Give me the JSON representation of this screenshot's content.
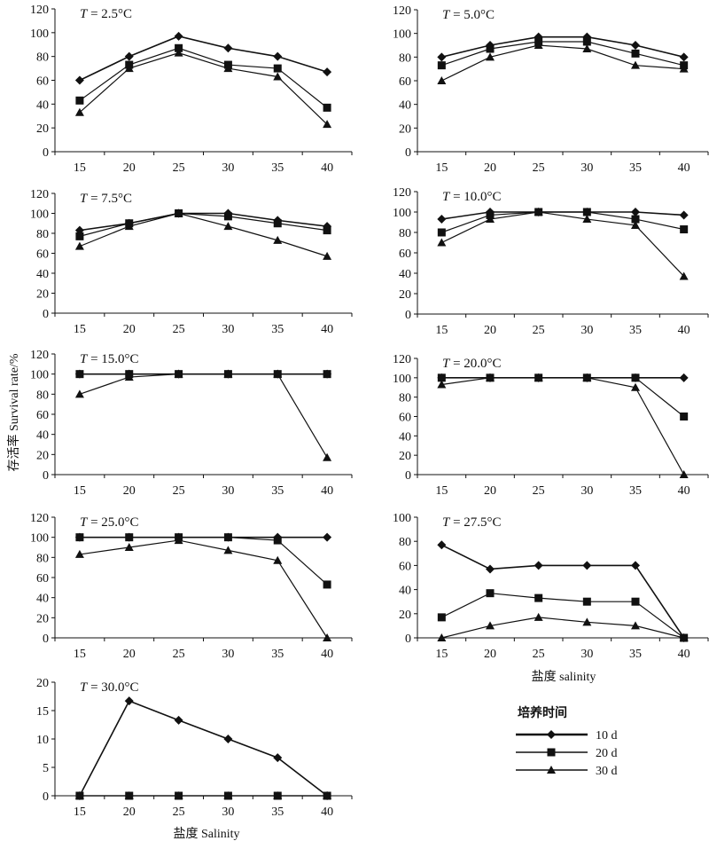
{
  "figure": {
    "y_axis_label": "存活率 Survival rate/%",
    "x_axis_labels": [
      "盐度 salinity",
      "盐度 Salinity"
    ],
    "legend_title": "培养时间"
  },
  "chart_data": [
    {
      "type": "line",
      "title": "T = 2.5°C",
      "title_var": "T",
      "title_rest": " = 2.5°C",
      "x": [
        15,
        20,
        25,
        30,
        35,
        40
      ],
      "ylim": [
        0,
        120
      ],
      "yticks": [
        0,
        20,
        40,
        60,
        80,
        100,
        120
      ],
      "series": [
        {
          "name": "10 d",
          "marker": "diamond",
          "values": [
            60,
            80,
            97,
            87,
            80,
            67
          ]
        },
        {
          "name": "20 d",
          "marker": "square",
          "values": [
            43,
            73,
            87,
            73,
            70,
            37
          ]
        },
        {
          "name": "30 d",
          "marker": "triangle",
          "values": [
            33,
            70,
            83,
            70,
            63,
            23
          ]
        }
      ]
    },
    {
      "type": "line",
      "title": "T = 5.0°C",
      "title_var": "T",
      "title_rest": " = 5.0°C",
      "x": [
        15,
        20,
        25,
        30,
        35,
        40
      ],
      "ylim": [
        0,
        120
      ],
      "yticks": [
        0,
        20,
        40,
        60,
        80,
        100,
        120
      ],
      "series": [
        {
          "name": "10 d",
          "marker": "diamond",
          "values": [
            80,
            90,
            97,
            97,
            90,
            80
          ]
        },
        {
          "name": "20 d",
          "marker": "square",
          "values": [
            73,
            87,
            93,
            93,
            83,
            73
          ]
        },
        {
          "name": "30 d",
          "marker": "triangle",
          "values": [
            60,
            80,
            90,
            87,
            73,
            70
          ]
        }
      ]
    },
    {
      "type": "line",
      "title": "T = 7.5°C",
      "title_var": "T",
      "title_rest": " = 7.5°C",
      "x": [
        15,
        20,
        25,
        30,
        35,
        40
      ],
      "ylim": [
        0,
        120
      ],
      "yticks": [
        0,
        20,
        40,
        60,
        80,
        100,
        120
      ],
      "series": [
        {
          "name": "10 d",
          "marker": "diamond",
          "values": [
            83,
            90,
            100,
            100,
            93,
            87
          ]
        },
        {
          "name": "20 d",
          "marker": "square",
          "values": [
            77,
            90,
            100,
            97,
            90,
            83
          ]
        },
        {
          "name": "30 d",
          "marker": "triangle",
          "values": [
            67,
            87,
            100,
            87,
            73,
            57
          ]
        }
      ]
    },
    {
      "type": "line",
      "title": "T = 10.0°C",
      "title_var": "T",
      "title_rest": " = 10.0°C",
      "x": [
        15,
        20,
        25,
        30,
        35,
        40
      ],
      "ylim": [
        0,
        120
      ],
      "yticks": [
        0,
        20,
        40,
        60,
        80,
        100,
        120
      ],
      "series": [
        {
          "name": "10 d",
          "marker": "diamond",
          "values": [
            93,
            100,
            100,
            100,
            100,
            97
          ]
        },
        {
          "name": "20 d",
          "marker": "square",
          "values": [
            80,
            97,
            100,
            100,
            93,
            83
          ]
        },
        {
          "name": "30 d",
          "marker": "triangle",
          "values": [
            70,
            93,
            100,
            93,
            87,
            37
          ]
        }
      ]
    },
    {
      "type": "line",
      "title": "T = 15.0°C",
      "title_var": "T",
      "title_rest": " = 15.0°C",
      "x": [
        15,
        20,
        25,
        30,
        35,
        40
      ],
      "ylim": [
        0,
        120
      ],
      "yticks": [
        0,
        20,
        40,
        60,
        80,
        100,
        120
      ],
      "series": [
        {
          "name": "10 d",
          "marker": "diamond",
          "values": [
            100,
            100,
            100,
            100,
            100,
            100
          ]
        },
        {
          "name": "20 d",
          "marker": "square",
          "values": [
            100,
            100,
            100,
            100,
            100,
            100
          ]
        },
        {
          "name": "30 d",
          "marker": "triangle",
          "values": [
            80,
            97,
            100,
            100,
            100,
            17
          ]
        }
      ]
    },
    {
      "type": "line",
      "title": "T = 20.0°C",
      "title_var": "T",
      "title_rest": " = 20.0°C",
      "x": [
        15,
        20,
        25,
        30,
        35,
        40
      ],
      "ylim": [
        0,
        120
      ],
      "yticks": [
        0,
        20,
        40,
        60,
        80,
        100,
        120
      ],
      "series": [
        {
          "name": "10 d",
          "marker": "diamond",
          "values": [
            100,
            100,
            100,
            100,
            100,
            100
          ]
        },
        {
          "name": "20 d",
          "marker": "square",
          "values": [
            100,
            100,
            100,
            100,
            100,
            60
          ]
        },
        {
          "name": "30 d",
          "marker": "triangle",
          "values": [
            93,
            100,
            100,
            100,
            90,
            0
          ]
        }
      ]
    },
    {
      "type": "line",
      "title": "T = 25.0°C",
      "title_var": "T",
      "title_rest": " = 25.0°C",
      "x": [
        15,
        20,
        25,
        30,
        35,
        40
      ],
      "ylim": [
        0,
        120
      ],
      "yticks": [
        0,
        20,
        40,
        60,
        80,
        100,
        120
      ],
      "series": [
        {
          "name": "10 d",
          "marker": "diamond",
          "values": [
            100,
            100,
            100,
            100,
            100,
            100
          ]
        },
        {
          "name": "20 d",
          "marker": "square",
          "values": [
            100,
            100,
            100,
            100,
            97,
            53
          ]
        },
        {
          "name": "30 d",
          "marker": "triangle",
          "values": [
            83,
            90,
            97,
            87,
            77,
            0
          ]
        }
      ]
    },
    {
      "type": "line",
      "title": "T = 27.5°C",
      "title_var": "T",
      "title_rest": " = 27.5°C",
      "x": [
        15,
        20,
        25,
        30,
        35,
        40
      ],
      "ylim": [
        0,
        100
      ],
      "yticks": [
        0,
        20,
        40,
        60,
        80,
        100
      ],
      "series": [
        {
          "name": "10 d",
          "marker": "diamond",
          "values": [
            77,
            57,
            60,
            60,
            60,
            0
          ]
        },
        {
          "name": "20 d",
          "marker": "square",
          "values": [
            17,
            37,
            33,
            30,
            30,
            0
          ]
        },
        {
          "name": "30 d",
          "marker": "triangle",
          "values": [
            0,
            10,
            17,
            13,
            10,
            0
          ]
        }
      ]
    },
    {
      "type": "line",
      "title": "T = 30.0°C",
      "title_var": "T",
      "title_rest": " = 30.0°C",
      "x": [
        15,
        20,
        25,
        30,
        35,
        40
      ],
      "ylim": [
        0,
        20
      ],
      "yticks": [
        0,
        5,
        10,
        15,
        20
      ],
      "series": [
        {
          "name": "10 d",
          "marker": "diamond",
          "values": [
            0,
            16.7,
            13.3,
            10,
            6.7,
            0
          ]
        },
        {
          "name": "20 d",
          "marker": "square",
          "values": [
            0,
            0,
            0,
            0,
            0,
            0
          ]
        },
        {
          "name": "30 d",
          "marker": "triangle",
          "values": [
            0,
            0,
            0,
            0,
            0,
            0
          ]
        }
      ]
    }
  ],
  "legend": {
    "items": [
      {
        "label": "10 d",
        "marker": "diamond"
      },
      {
        "label": "20 d",
        "marker": "square"
      },
      {
        "label": "30 d",
        "marker": "triangle"
      }
    ]
  }
}
